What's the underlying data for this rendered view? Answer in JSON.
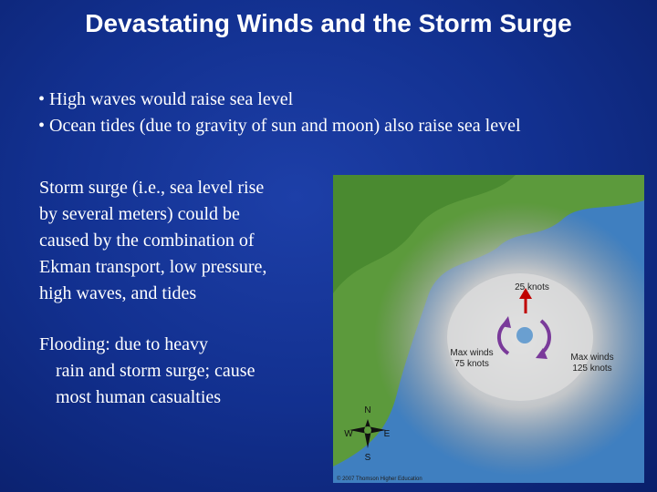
{
  "header": {
    "title": "Devastating Winds and the Storm Surge"
  },
  "bullets": [
    "• High waves would raise sea level",
    "• Ocean tides (due to gravity of sun and moon) also raise sea level"
  ],
  "paragraphs": [
    {
      "lines": [
        "Storm surge (i.e., sea level rise",
        "by several meters) could be",
        "caused by the combination of",
        "Ekman transport, low pressure,",
        "high waves, and tides"
      ]
    },
    {
      "lines": [
        "Flooding: due to heavy",
        "rain and storm surge; cause",
        "most human casualties"
      ]
    }
  ],
  "figure": {
    "labels": {
      "top": [
        "25 knots"
      ],
      "left": [
        "Max winds",
        "75 knots"
      ],
      "right": [
        "Max winds",
        "125 knots"
      ]
    },
    "compass": {
      "north": "N",
      "west": "W",
      "east": "E",
      "south": "S"
    },
    "credit": "© 2007 Thomson Higher Education"
  }
}
